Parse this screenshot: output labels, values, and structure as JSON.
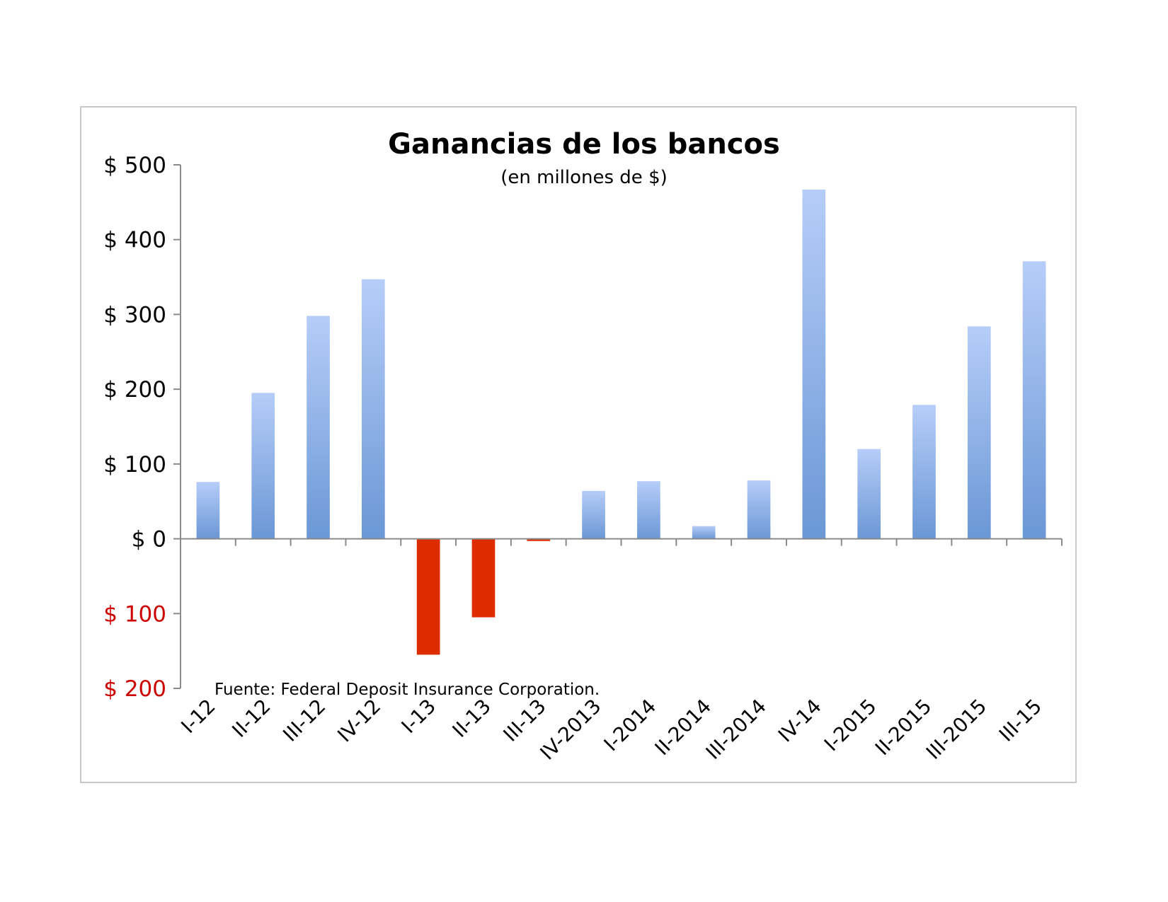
{
  "chart_data": {
    "type": "bar",
    "title": "Ganancias de los bancos",
    "subtitle": "(en millones de $)",
    "source": "Fuente: Federal Deposit Insurance Corporation.",
    "xlabel": "",
    "ylabel": "",
    "ylim": [
      -200,
      500
    ],
    "grid": false,
    "yticks": [
      {
        "value": 500,
        "label": "$ 500"
      },
      {
        "value": 400,
        "label": "$ 400"
      },
      {
        "value": 300,
        "label": "$ 300"
      },
      {
        "value": 200,
        "label": "$ 200"
      },
      {
        "value": 100,
        "label": "$ 100"
      },
      {
        "value": 0,
        "label": "$ 0"
      },
      {
        "value": -100,
        "label": "$ 100"
      },
      {
        "value": -200,
        "label": "$ 200"
      }
    ],
    "categories": [
      "I-12",
      "II-12",
      "III-12",
      "IV-12",
      "I-13",
      "II-13",
      "III-13",
      "IV-2013",
      "I-2014",
      "II-2014",
      "III-2014",
      "IV-14",
      "I-2015",
      "II-2015",
      "III-2015",
      "III-15"
    ],
    "values": [
      76,
      195,
      298,
      347,
      -155,
      -105,
      -3,
      64,
      77,
      17,
      78,
      467,
      120,
      179,
      284,
      371
    ],
    "colors": {
      "positive_top": "#b6cdf8",
      "positive_bottom": "#6b97d6",
      "negative": "#dd2c00",
      "negative_tick": "#cc0000",
      "positive_tick": "#000000",
      "axis": "#8a8a8a"
    }
  }
}
